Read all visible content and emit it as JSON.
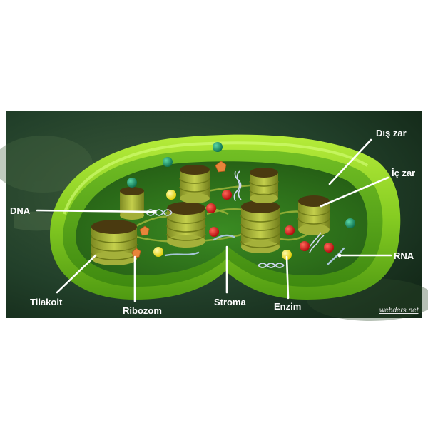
{
  "diagram": {
    "labels": {
      "dis_zar": "Dış zar",
      "ic_zar": "İç zar",
      "dna": "DNA",
      "rna": "RNA",
      "tilakoit": "Tilakoit",
      "ribozom": "Ribozom",
      "stroma": "Stroma",
      "enzim": "Enzim"
    },
    "credit": "webders.net"
  },
  "colors": {
    "background": "#1e3a22",
    "outer_membrane": "#8fd62a",
    "inner_membrane": "#5cae1a",
    "stroma": "#2f7b1c",
    "thylakoid": "#a8b83a",
    "dna_strand": "#c9d4ec",
    "ribosome": "#e8843a",
    "enzyme": "#f3e300",
    "red_particle": "#d40e12",
    "teal_particle": "#16906a"
  }
}
